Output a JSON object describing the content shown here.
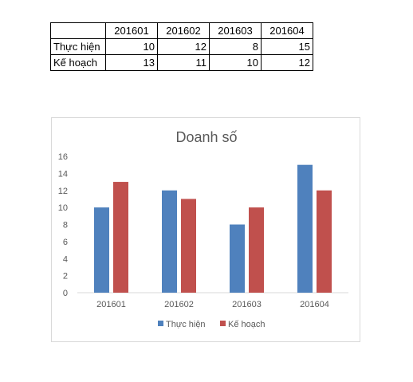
{
  "table": {
    "headers": [
      "",
      "201601",
      "201602",
      "201603",
      "201604"
    ],
    "rows": [
      {
        "label": "Thực hiện",
        "values": [
          "10",
          "12",
          "8",
          "15"
        ]
      },
      {
        "label": "Kế hoạch",
        "values": [
          "13",
          "11",
          "10",
          "12"
        ]
      }
    ]
  },
  "chart_data": {
    "type": "bar",
    "title": "Doanh số",
    "xlabel": "",
    "ylabel": "",
    "categories": [
      "201601",
      "201602",
      "201603",
      "201604"
    ],
    "series": [
      {
        "name": "Thực hiện",
        "values": [
          10,
          12,
          8,
          15
        ],
        "color": "#4f81bd"
      },
      {
        "name": "Kế hoạch",
        "values": [
          13,
          11,
          10,
          12
        ],
        "color": "#c0504d"
      }
    ],
    "ylim": [
      0,
      16
    ],
    "yticks": [
      "0",
      "2",
      "4",
      "6",
      "8",
      "10",
      "12",
      "14",
      "16"
    ],
    "grid": false,
    "legend": "bottom"
  }
}
